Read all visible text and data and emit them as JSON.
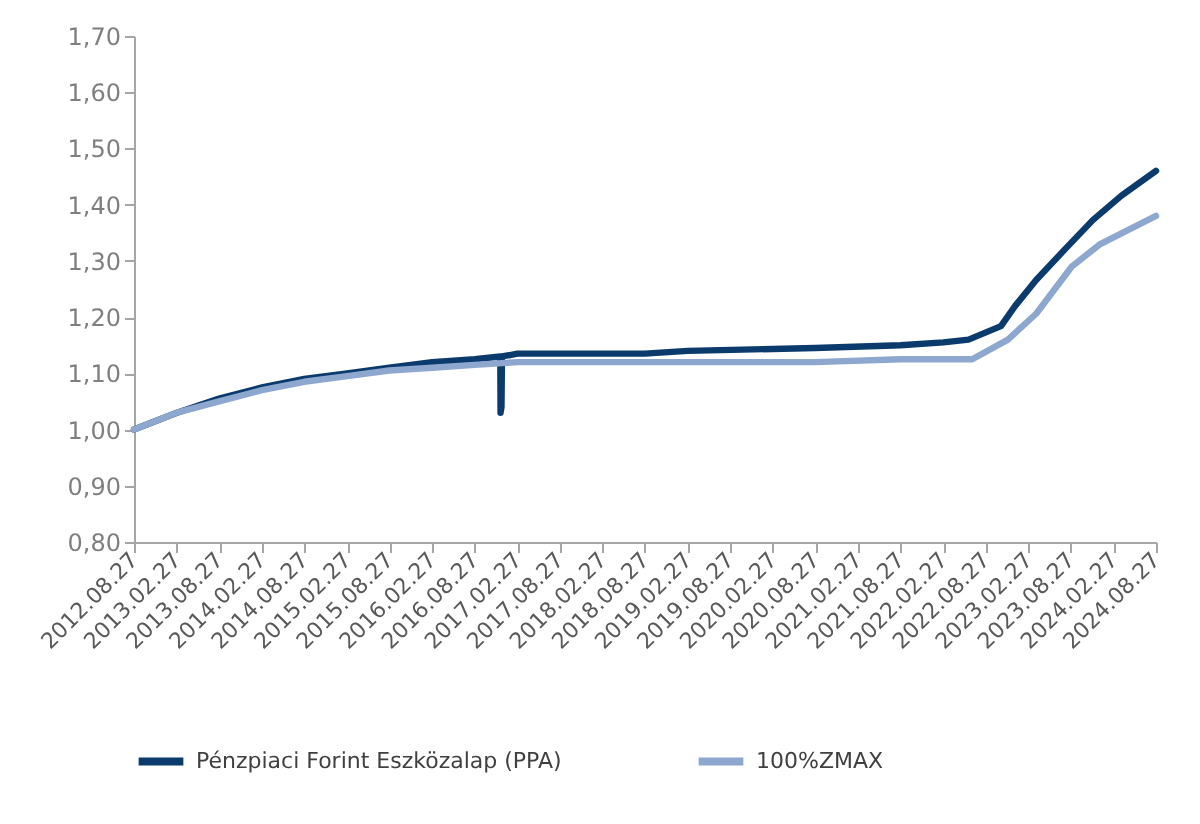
{
  "chart_data": {
    "type": "line",
    "ylim": [
      0.8,
      1.7
    ],
    "yticks": [
      {
        "value": 0.8,
        "label": "0,80"
      },
      {
        "value": 0.9,
        "label": "0,90"
      },
      {
        "value": 1.0,
        "label": "1,00"
      },
      {
        "value": 1.1,
        "label": "1,10"
      },
      {
        "value": 1.2,
        "label": "1,20"
      },
      {
        "value": 1.3,
        "label": "1,30"
      },
      {
        "value": 1.4,
        "label": "1,40"
      },
      {
        "value": 1.5,
        "label": "1,50"
      },
      {
        "value": 1.6,
        "label": "1,60"
      },
      {
        "value": 1.7,
        "label": "1,70"
      }
    ],
    "xlim": [
      "2012-08-27",
      "2024-08-27"
    ],
    "xticks": [
      {
        "value": "2012-08-27",
        "label": "2012.08.27"
      },
      {
        "value": "2013-02-27",
        "label": "2013.02.27"
      },
      {
        "value": "2013-08-27",
        "label": "2013.08.27"
      },
      {
        "value": "2014-02-27",
        "label": "2014.02.27"
      },
      {
        "value": "2014-08-27",
        "label": "2014.08.27"
      },
      {
        "value": "2015-02-27",
        "label": "2015.02.27"
      },
      {
        "value": "2015-08-27",
        "label": "2015.08.27"
      },
      {
        "value": "2016-02-27",
        "label": "2016.02.27"
      },
      {
        "value": "2016-08-27",
        "label": "2016.08.27"
      },
      {
        "value": "2017-02-27",
        "label": "2017.02.27"
      },
      {
        "value": "2017-08-27",
        "label": "2017.08.27"
      },
      {
        "value": "2018-02-27",
        "label": "2018.02.27"
      },
      {
        "value": "2018-08-27",
        "label": "2018.08.27"
      },
      {
        "value": "2019-02-27",
        "label": "2019.02.27"
      },
      {
        "value": "2019-08-27",
        "label": "2019.08.27"
      },
      {
        "value": "2020-02-27",
        "label": "2020.02.27"
      },
      {
        "value": "2020-08-27",
        "label": "2020.08.27"
      },
      {
        "value": "2021-02-27",
        "label": "2021.02.27"
      },
      {
        "value": "2021-08-27",
        "label": "2021.08.27"
      },
      {
        "value": "2022-02-27",
        "label": "2022.02.27"
      },
      {
        "value": "2022-08-27",
        "label": "2022.08.27"
      },
      {
        "value": "2023-02-27",
        "label": "2023.02.27"
      },
      {
        "value": "2023-08-27",
        "label": "2023.08.27"
      },
      {
        "value": "2024-02-27",
        "label": "2024.02.27"
      },
      {
        "value": "2024-08-27",
        "label": "2024.08.27"
      }
    ],
    "grid": false,
    "legend": "bottom",
    "series": [
      {
        "name": "Pénzpiaci Forint Eszközalap (PPA)",
        "color": "#0b3a6c",
        "x": [
          "2012-08-27",
          "2013-02-27",
          "2013-08-27",
          "2014-02-27",
          "2014-08-27",
          "2015-02-27",
          "2015-08-27",
          "2016-02-27",
          "2016-08-27",
          "2016-12-15",
          "2016-12-16",
          "2016-12-20",
          "2016-12-22",
          "2017-02-27",
          "2018-08-27",
          "2019-02-27",
          "2020-08-27",
          "2021-08-27",
          "2022-02-27",
          "2022-06-15",
          "2022-11-01",
          "2023-01-01",
          "2023-04-01",
          "2023-08-01",
          "2023-12-01",
          "2024-04-01",
          "2024-08-27"
        ],
        "values": [
          1.0,
          1.03,
          1.055,
          1.075,
          1.09,
          1.1,
          1.11,
          1.12,
          1.125,
          1.13,
          1.03,
          1.04,
          1.13,
          1.135,
          1.135,
          1.14,
          1.145,
          1.15,
          1.155,
          1.16,
          1.184,
          1.22,
          1.266,
          1.32,
          1.373,
          1.416,
          1.46
        ]
      },
      {
        "name": "100%ZMAX",
        "color": "#8ea7cf",
        "x": [
          "2012-08-27",
          "2013-02-27",
          "2013-08-27",
          "2014-02-27",
          "2014-08-27",
          "2015-02-27",
          "2015-08-27",
          "2016-02-27",
          "2016-08-27",
          "2017-02-27",
          "2019-08-27",
          "2020-08-27",
          "2021-08-27",
          "2022-07-01",
          "2022-12-01",
          "2023-04-01",
          "2023-09-01",
          "2024-01-01",
          "2024-08-27"
        ],
        "values": [
          1.0,
          1.03,
          1.05,
          1.07,
          1.085,
          1.095,
          1.105,
          1.11,
          1.115,
          1.12,
          1.12,
          1.12,
          1.125,
          1.125,
          1.16,
          1.206,
          1.29,
          1.33,
          1.38
        ]
      }
    ]
  }
}
